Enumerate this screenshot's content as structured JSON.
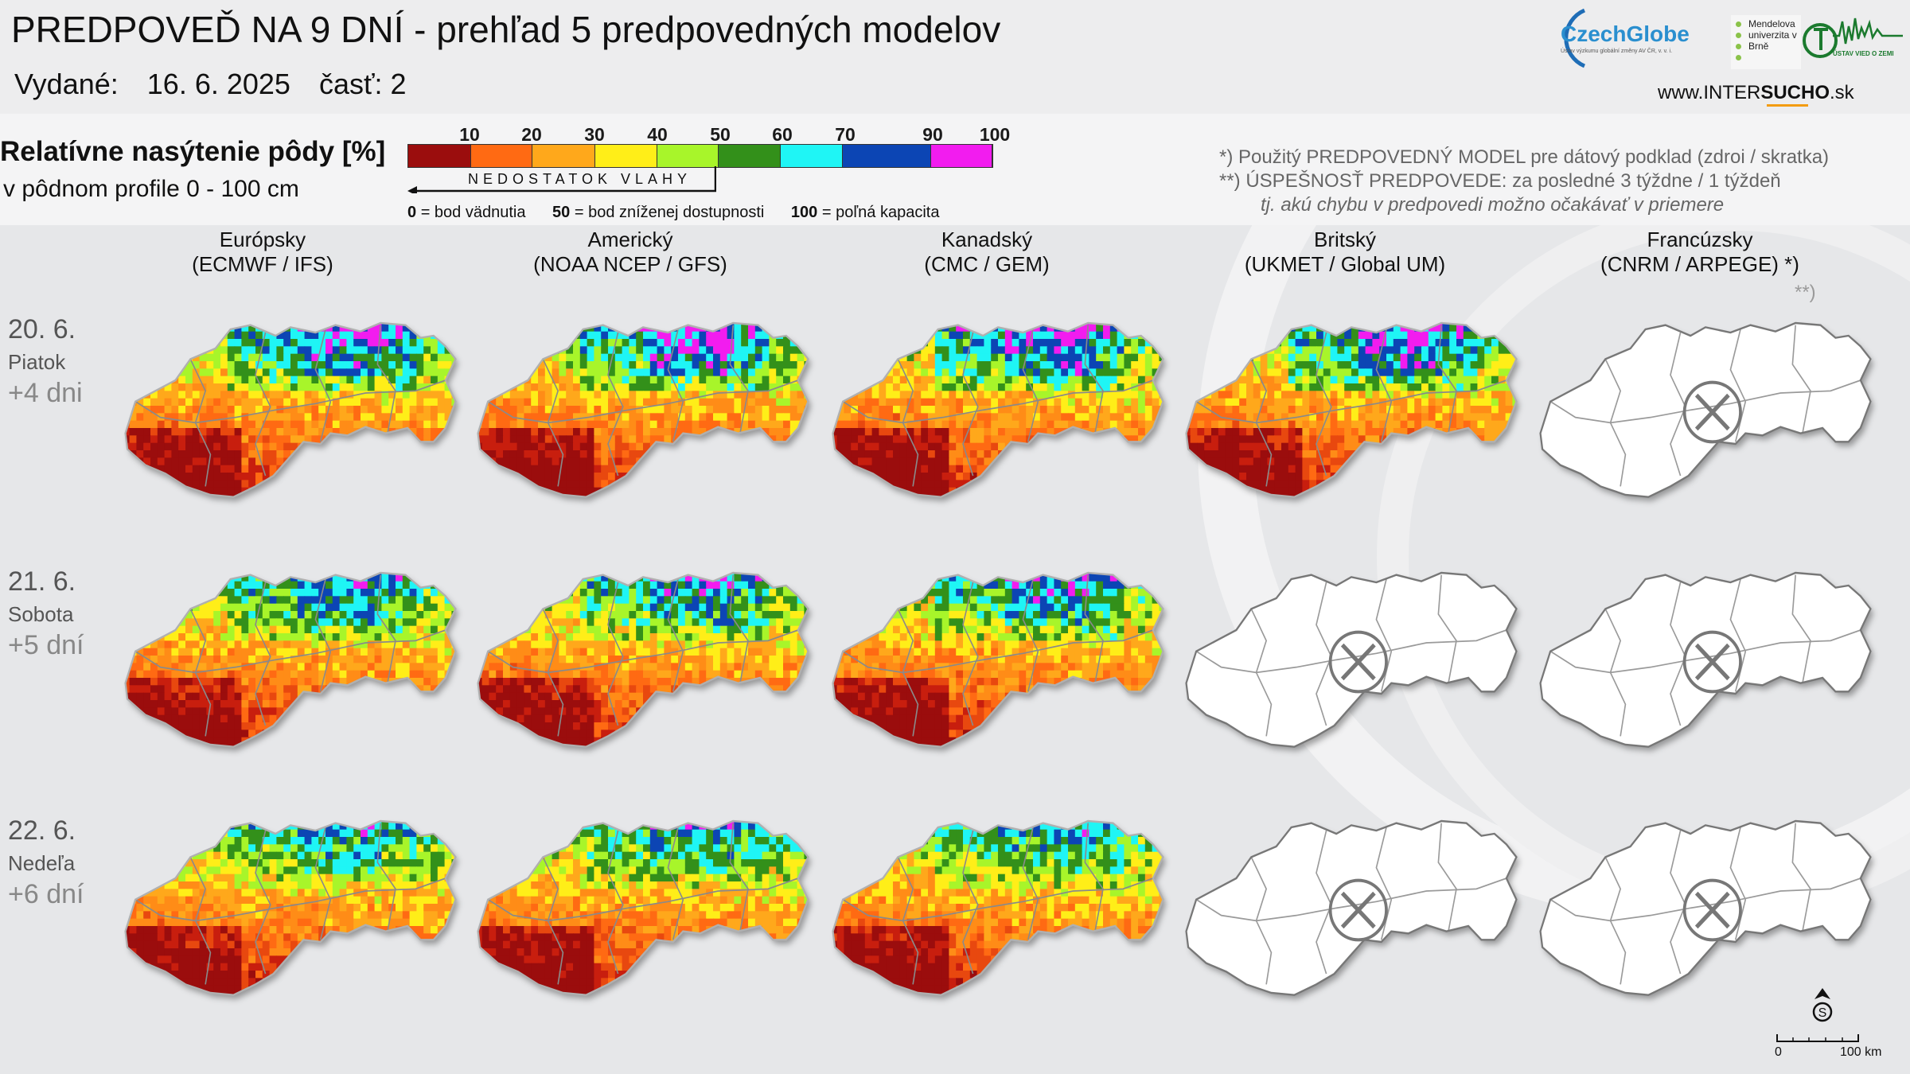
{
  "header": {
    "title": "PREDPOVEĎ NA 9 DNÍ - prehľad 5 predpovedných modelov",
    "issued_label": "Vydané:",
    "issued_date": "16. 6. 2025",
    "part_label": "časť: 2",
    "logo_czechglobe": "CzechGlobe",
    "logo_czechglobe_sub": "Ústav výzkumu globální změny AV ČR, v. v. i.",
    "logo_mendel": "Mendelova univerzita v Brně",
    "logo_ustav": "ÚSTAV VIED O ZEMI",
    "url_prefix": "www.INTER",
    "url_bold": "SUCHO",
    "url_suffix": ".sk"
  },
  "legend": {
    "heading": "Relatívne nasýtenie pôdy [%]",
    "subheading": "v pôdnom profile 0 - 100 cm",
    "ticks": [
      "10",
      "20",
      "30",
      "40",
      "50",
      "60",
      "70",
      "90",
      "100"
    ],
    "colors": [
      "#9b0d0d",
      "#ff6a13",
      "#ffa81b",
      "#ffee18",
      "#a8f52a",
      "#33901a",
      "#1ff5f5",
      "#0c45b4",
      "#f21cef"
    ],
    "deficit_label": "NEDOSTATOK VLAHY",
    "note0_bold": "0",
    "note0": "= bod vädnutia",
    "note50_bold": "50",
    "note50": "= bod zníženej dostupnosti",
    "note100_bold": "100",
    "note100": "= poľná kapacita"
  },
  "footnotes": {
    "n1": "*)   Použitý PREDPOVEDNÝ MODEL pre dátový podklad (zdroi / skratka)",
    "n2": "**) ÚSPEŠNOSŤ PREDPOVEDE: za posledné 3 týždne / 1 týždeň",
    "n3": "tj. akú chybu v predpovedi možno očakávať v priemere"
  },
  "models": [
    {
      "name": "Európsky",
      "code": "(ECMWF / IFS)"
    },
    {
      "name": "Americký",
      "code": "(NOAA NCEP / GFS)"
    },
    {
      "name": "Kanadský",
      "code": "(CMC / GEM)"
    },
    {
      "name": "Britský",
      "code": "(UKMET / Global UM)"
    },
    {
      "name": "Francúzsky",
      "code": "(CNRM / ARPEGE) *)"
    }
  ],
  "accuracy_marker": "**)",
  "rows": [
    {
      "date": "20. 6.",
      "weekday": "Piatok",
      "lead": "+4 dni",
      "available": [
        true,
        true,
        true,
        true,
        false
      ]
    },
    {
      "date": "21. 6.",
      "weekday": "Sobota",
      "lead": "+5 dní",
      "available": [
        true,
        true,
        true,
        false,
        false
      ]
    },
    {
      "date": "22. 6.",
      "weekday": "Nedeľa",
      "lead": "+6 dní",
      "available": [
        true,
        true,
        true,
        false,
        false
      ]
    }
  ],
  "scale_bar": {
    "start": "0",
    "end": "100 km"
  },
  "icons": {
    "unavailable": "cross-circle-icon",
    "north": "north-arrow-icon"
  }
}
